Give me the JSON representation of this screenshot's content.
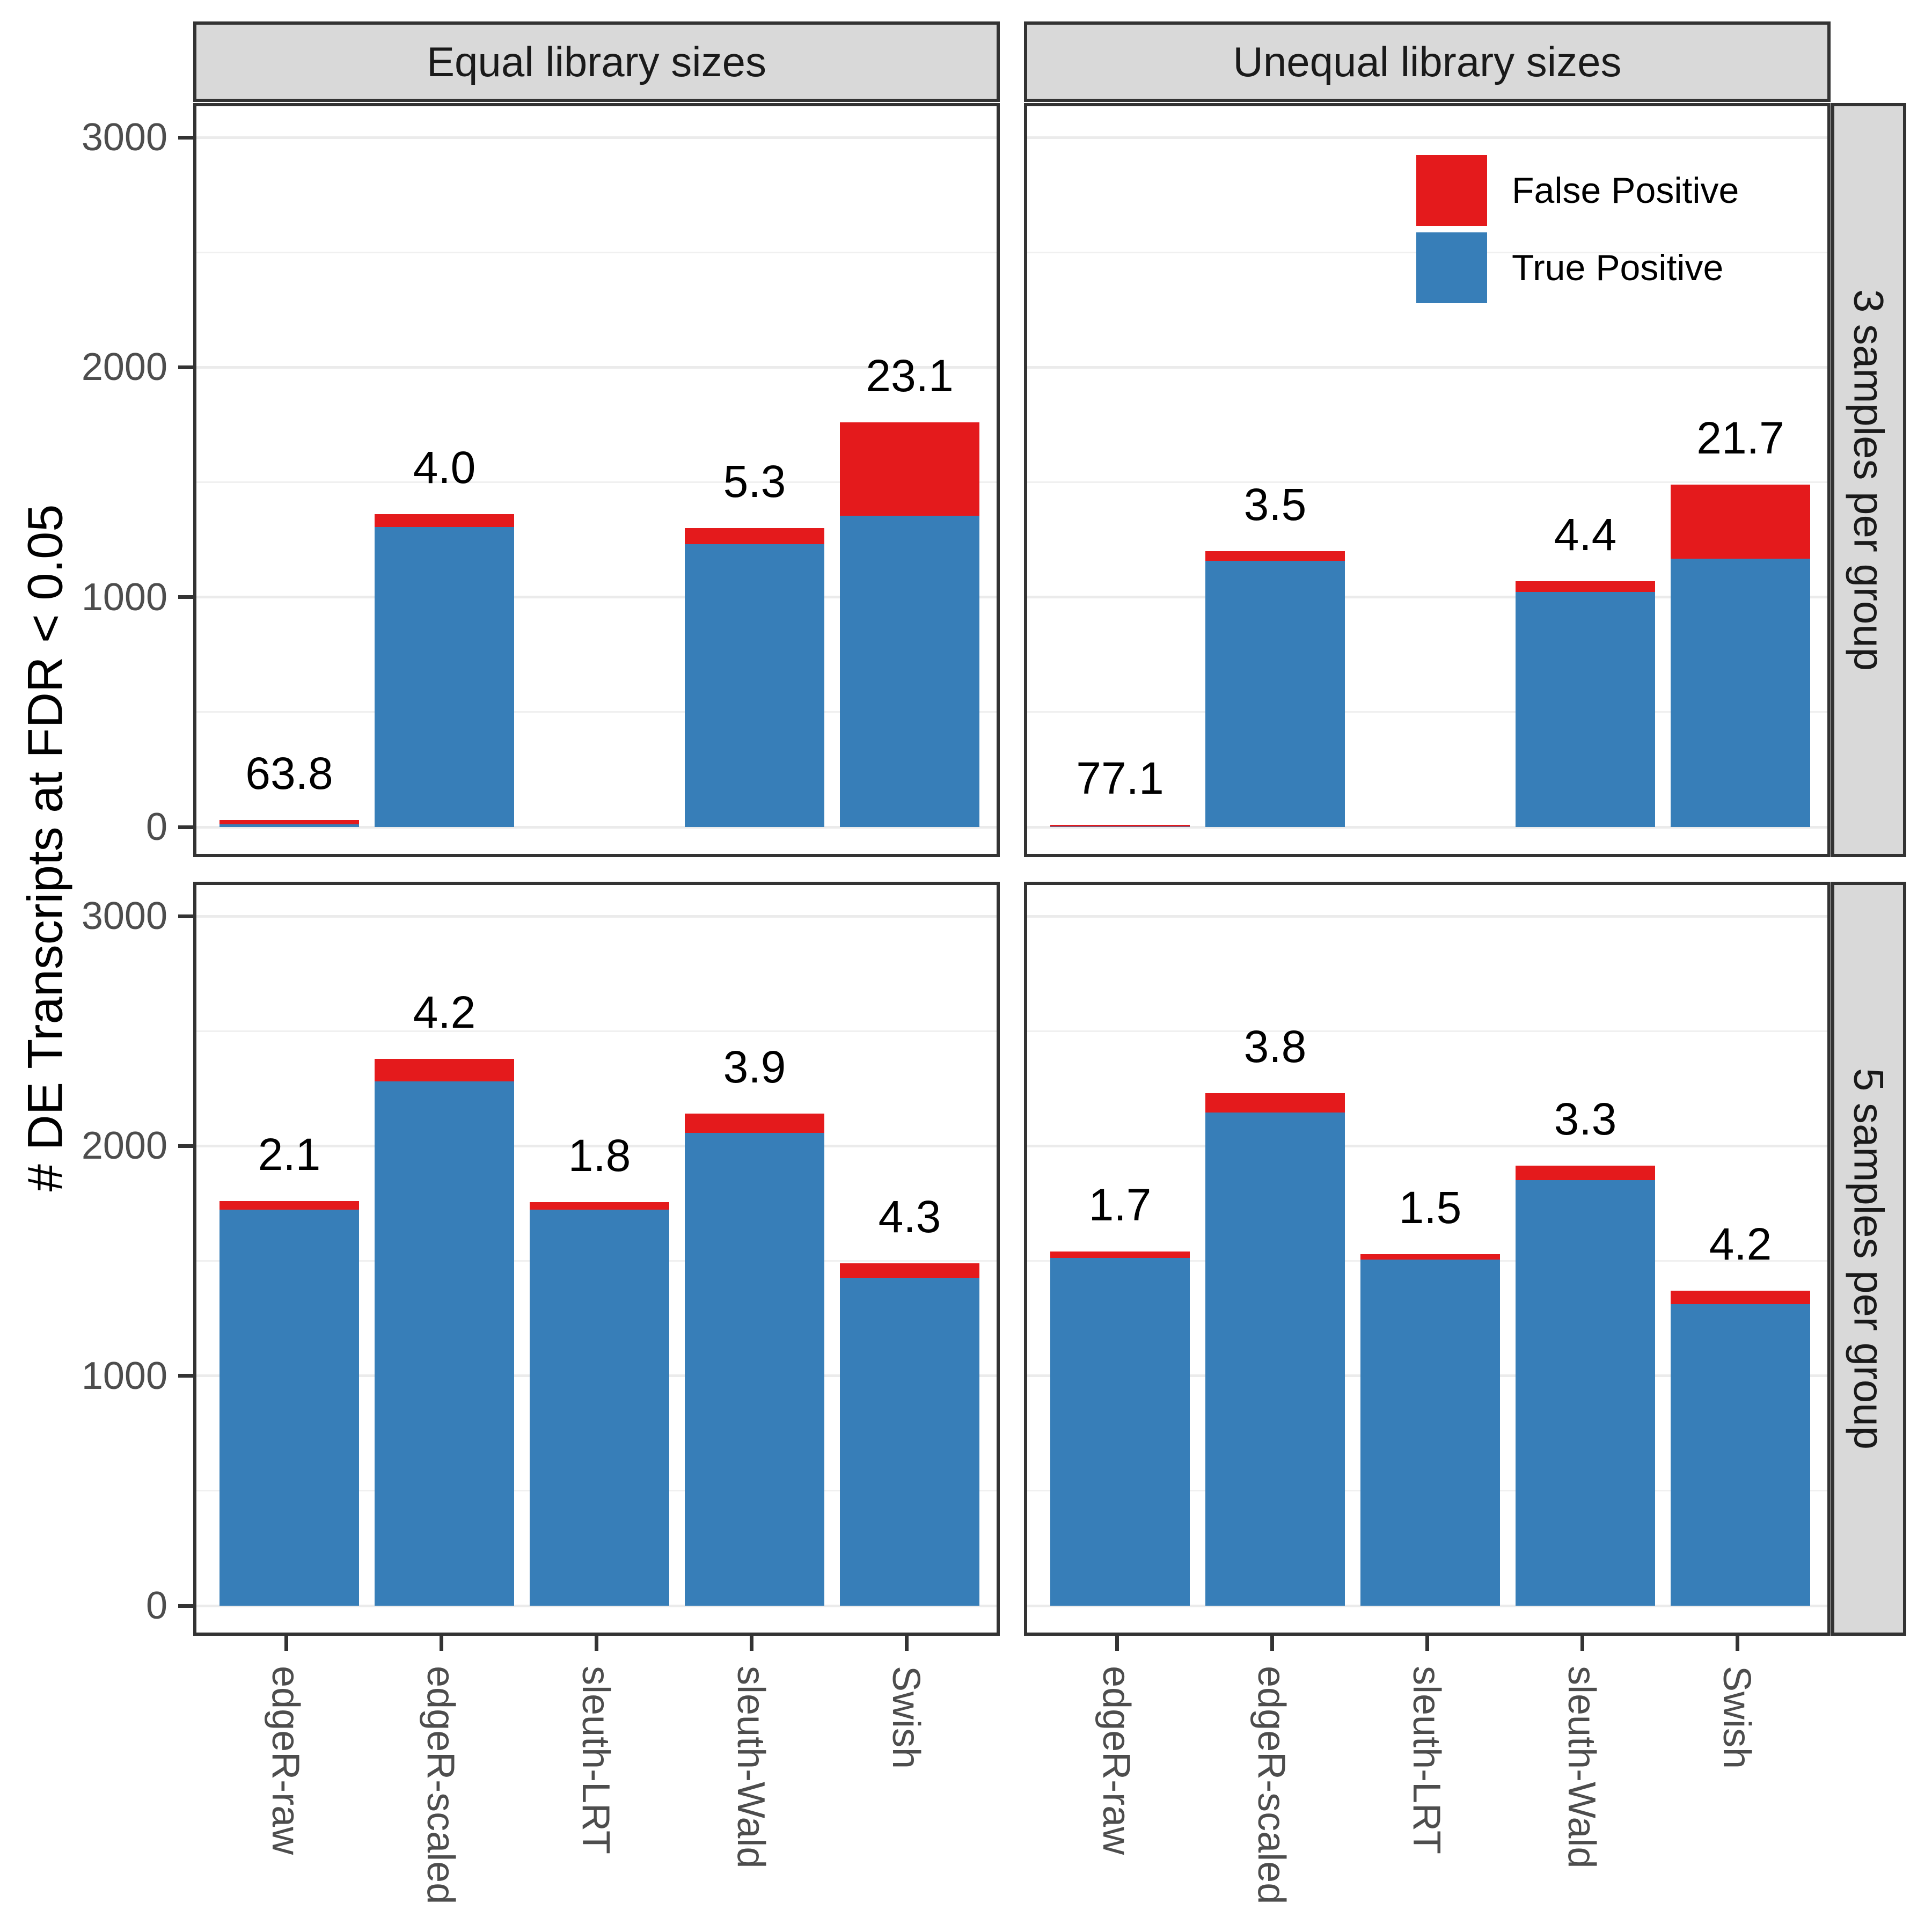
{
  "chart_data": {
    "type": "bar",
    "stacked": true,
    "ylabel": "# DE Transcripts at FDR < 0.05",
    "ylim": [
      0,
      3000
    ],
    "yticks": [
      0,
      1000,
      2000,
      3000
    ],
    "ytick_labels": [
      "0",
      "1000",
      "2000",
      "3000"
    ],
    "yticks_minor": [
      500,
      1500,
      2500
    ],
    "grid": "on",
    "legend_position": "inside-top-right-panel",
    "categories": [
      "edgeR-raw",
      "edgeR-scaled",
      "sleuth-LRT",
      "sleuth-Wald",
      "Swish"
    ],
    "col_facets": [
      "Equal library sizes",
      "Unequal library sizes"
    ],
    "row_facets": [
      "3 samples per group",
      "5 samples per group"
    ],
    "legend": [
      {
        "label": "False Positive",
        "color": "#E41A1C"
      },
      {
        "label": "True Positive",
        "color": "#377EB8"
      }
    ],
    "bar_label_meaning": "FDR percentage printed above each bar",
    "panels": [
      {
        "col_facet": "Equal library sizes",
        "row_facet": "3 samples per group",
        "bars": [
          {
            "method": "edgeR-raw",
            "true_positive": 11,
            "false_positive": 19,
            "total": 30,
            "fdr_label": "63.8"
          },
          {
            "method": "edgeR-scaled",
            "true_positive": 1306,
            "false_positive": 54,
            "total": 1360,
            "fdr_label": "4.0"
          },
          {
            "method": "sleuth-LRT",
            "true_positive": 0,
            "false_positive": 0,
            "total": 0,
            "fdr_label": null
          },
          {
            "method": "sleuth-Wald",
            "true_positive": 1231,
            "false_positive": 69,
            "total": 1300,
            "fdr_label": "5.3"
          },
          {
            "method": "Swish",
            "true_positive": 1353,
            "false_positive": 407,
            "total": 1760,
            "fdr_label": "23.1"
          }
        ]
      },
      {
        "col_facet": "Unequal library sizes",
        "row_facet": "3 samples per group",
        "bars": [
          {
            "method": "edgeR-raw",
            "true_positive": 2,
            "false_positive": 8,
            "total": 10,
            "fdr_label": "77.1"
          },
          {
            "method": "edgeR-scaled",
            "true_positive": 1158,
            "false_positive": 42,
            "total": 1200,
            "fdr_label": "3.5"
          },
          {
            "method": "sleuth-LRT",
            "true_positive": 0,
            "false_positive": 0,
            "total": 0,
            "fdr_label": null
          },
          {
            "method": "sleuth-Wald",
            "true_positive": 1023,
            "false_positive": 47,
            "total": 1070,
            "fdr_label": "4.4"
          },
          {
            "method": "Swish",
            "true_positive": 1167,
            "false_positive": 323,
            "total": 1490,
            "fdr_label": "21.7"
          }
        ]
      },
      {
        "col_facet": "Equal library sizes",
        "row_facet": "5 samples per group",
        "bars": [
          {
            "method": "edgeR-raw",
            "true_positive": 1723,
            "false_positive": 37,
            "total": 1760,
            "fdr_label": "2.1"
          },
          {
            "method": "edgeR-scaled",
            "true_positive": 2280,
            "false_positive": 100,
            "total": 2380,
            "fdr_label": "4.2"
          },
          {
            "method": "sleuth-LRT",
            "true_positive": 1723,
            "false_positive": 32,
            "total": 1755,
            "fdr_label": "1.8"
          },
          {
            "method": "sleuth-Wald",
            "true_positive": 2057,
            "false_positive": 83,
            "total": 2140,
            "fdr_label": "3.9"
          },
          {
            "method": "Swish",
            "true_positive": 1426,
            "false_positive": 64,
            "total": 1490,
            "fdr_label": "4.3"
          }
        ]
      },
      {
        "col_facet": "Unequal library sizes",
        "row_facet": "5 samples per group",
        "bars": [
          {
            "method": "edgeR-raw",
            "true_positive": 1514,
            "false_positive": 26,
            "total": 1540,
            "fdr_label": "1.7"
          },
          {
            "method": "edgeR-scaled",
            "true_positive": 2145,
            "false_positive": 85,
            "total": 2230,
            "fdr_label": "3.8"
          },
          {
            "method": "sleuth-LRT",
            "true_positive": 1507,
            "false_positive": 23,
            "total": 1530,
            "fdr_label": "1.5"
          },
          {
            "method": "sleuth-Wald",
            "true_positive": 1852,
            "false_positive": 63,
            "total": 1915,
            "fdr_label": "3.3"
          },
          {
            "method": "Swish",
            "true_positive": 1312,
            "false_positive": 58,
            "total": 1370,
            "fdr_label": "4.2"
          }
        ]
      }
    ]
  },
  "colors": {
    "false_positive": "#E41A1C",
    "true_positive": "#377EB8",
    "panel_border": "#333333",
    "strip_background": "#D9D9D9",
    "gridline": "#EBEBEB",
    "tick_text": "#4D4D4D",
    "background": "#FFFFFF"
  }
}
